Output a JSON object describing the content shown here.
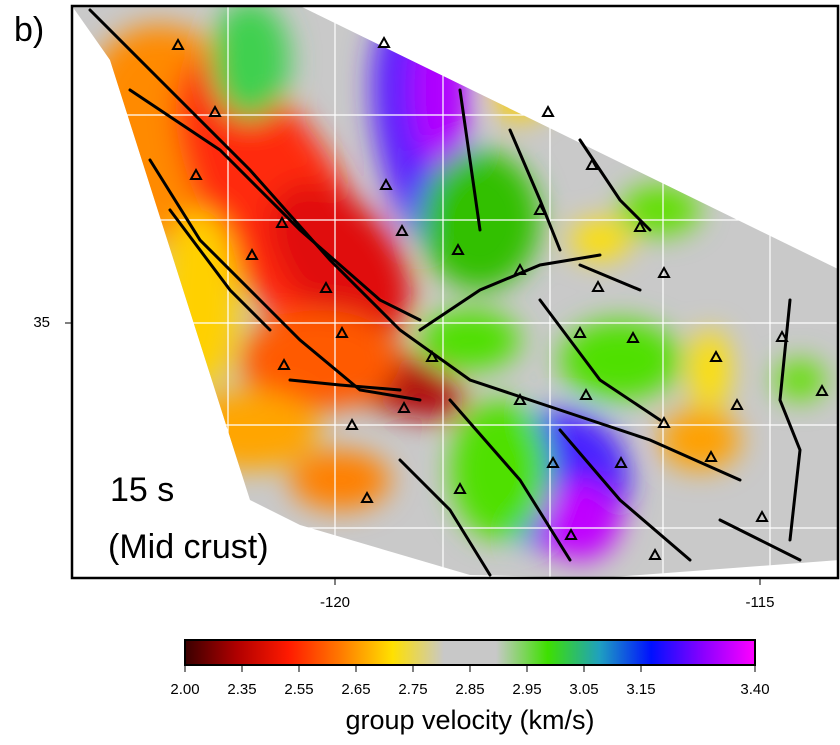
{
  "map": {
    "panel_label": "b)",
    "period": "15 s",
    "depth": "(Mid crust)",
    "y_tick_labels": [
      "35"
    ],
    "x_tick_labels": [
      "-120",
      "-115"
    ],
    "colorbar": {
      "tick_labels": [
        "2.00",
        "2.35",
        "2.55",
        "2.65",
        "2.75",
        "2.85",
        "2.95",
        "3.05",
        "3.15",
        "3.40"
      ],
      "colors": [
        "#3a0000",
        "#b00000",
        "#ff1a00",
        "#ff7a00",
        "#ffe000",
        "#c8c8c8",
        "#c8c8c8",
        "#3ee000",
        "#1fa0c0",
        "#0010ff",
        "#8a00ff",
        "#ff00ff"
      ],
      "title": "group velocity (km/s)"
    }
  }
}
